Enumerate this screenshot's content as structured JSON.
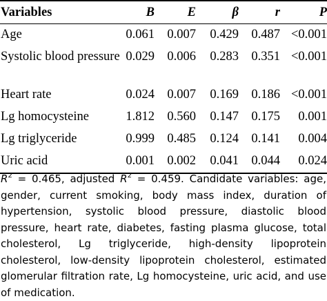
{
  "table": {
    "headers": {
      "variables": "Variables",
      "b": "B",
      "e": "E",
      "beta": "β",
      "r": "r",
      "p": "P"
    },
    "rows": [
      {
        "variable": "Age",
        "b": "0.061",
        "e": "0.007",
        "beta": "0.429",
        "r": "0.487",
        "p": "<0.001"
      },
      {
        "variable": "Systolic blood pressure",
        "b": "0.029",
        "e": "0.006",
        "beta": "0.283",
        "r": "0.351",
        "p": "<0.001"
      },
      {
        "variable": "Heart rate",
        "b": "0.024",
        "e": "0.007",
        "beta": "0.169",
        "r": "0.186",
        "p": "<0.001"
      },
      {
        "variable": "Lg homocysteine",
        "b": "1.812",
        "e": "0.560",
        "beta": "0.147",
        "r": "0.175",
        "p": "0.001"
      },
      {
        "variable": "Lg triglyceride",
        "b": "0.999",
        "e": "0.485",
        "beta": "0.124",
        "r": "0.141",
        "p": "0.004"
      },
      {
        "variable": "Uric acid",
        "b": "0.001",
        "e": "0.002",
        "beta": "0.041",
        "r": "0.044",
        "p": "0.024"
      }
    ]
  },
  "note": {
    "r_letter": "R",
    "sup": "2",
    "r2_value": " = 0.465, adjusted ",
    "r2_adj_value": " = 0.459. Candidate variables: age, gender, current smoking, body mass index, duration of hypertension, systolic blood pressure, diastolic blood pressure, heart rate, diabetes, fasting plasma glucose, total cholesterol, Lg triglyceride, high-density lipoprotein cholesterol, low-density lipoprotein cholesterol, estimated glomerular filtration rate, Lg homocysteine, uric acid, and use of medication."
  }
}
